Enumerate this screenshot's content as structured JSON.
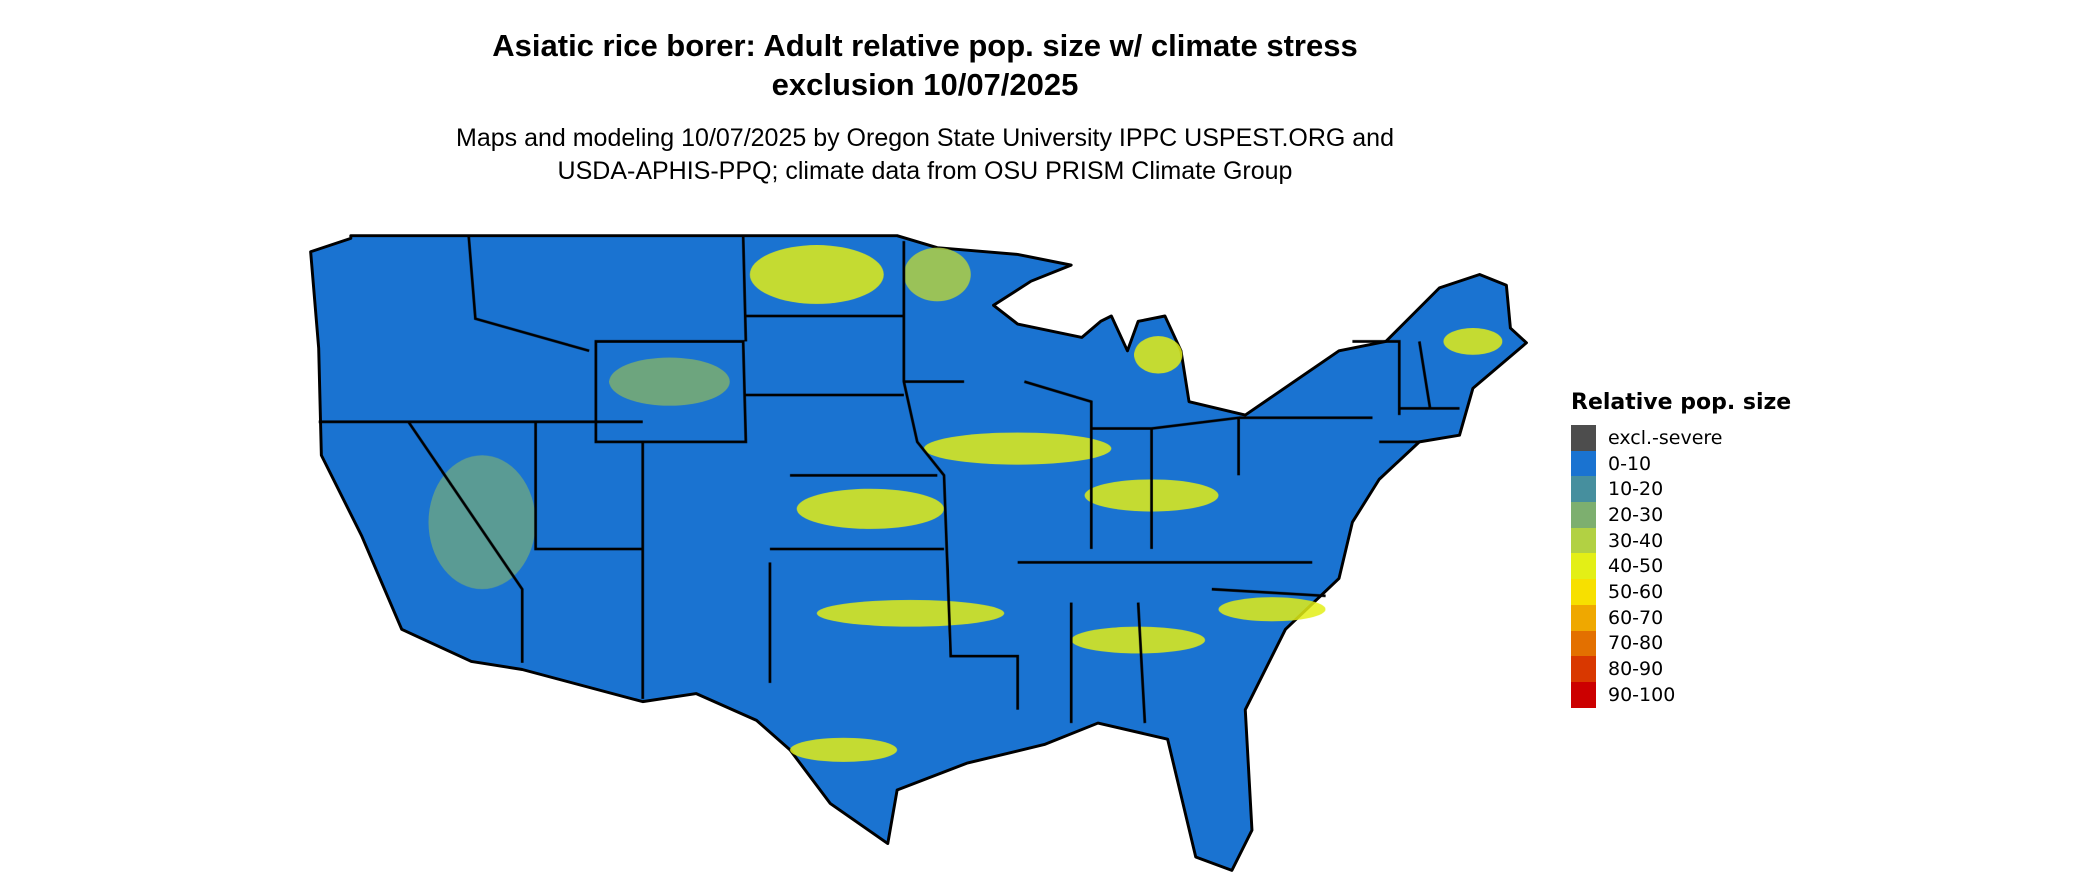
{
  "title": "Asiatic rice borer: Adult relative pop. size w/ climate stress exclusion 10/07/2025",
  "title_line1": "Asiatic rice borer: Adult relative pop. size w/ climate stress",
  "title_line2": "exclusion 10/07/2025",
  "subtitle_line1": "Maps and modeling 10/07/2025 by Oregon State University IPPC USPEST.ORG and",
  "subtitle_line2": "USDA-APHIS-PPQ; climate data from OSU PRISM Climate Group",
  "map": {
    "region": "Contiguous United States",
    "dominant_class": "0-10",
    "state_borders": true,
    "background": "#ffffff"
  },
  "legend": {
    "title": "Relative pop. size",
    "items": [
      {
        "label": "excl.-severe",
        "color": "#4d4d4d"
      },
      {
        "label": "0-10",
        "color": "#1a73d1"
      },
      {
        "label": "10-20",
        "color": "#468f9e"
      },
      {
        "label": "20-30",
        "color": "#7daf6f"
      },
      {
        "label": "30-40",
        "color": "#b2d143"
      },
      {
        "label": "40-50",
        "color": "#e3ef16"
      },
      {
        "label": "50-60",
        "color": "#f7e000"
      },
      {
        "label": "60-70",
        "color": "#efa800"
      },
      {
        "label": "70-80",
        "color": "#e37000"
      },
      {
        "label": "80-90",
        "color": "#d93800"
      },
      {
        "label": "90-100",
        "color": "#cc0000"
      }
    ]
  }
}
